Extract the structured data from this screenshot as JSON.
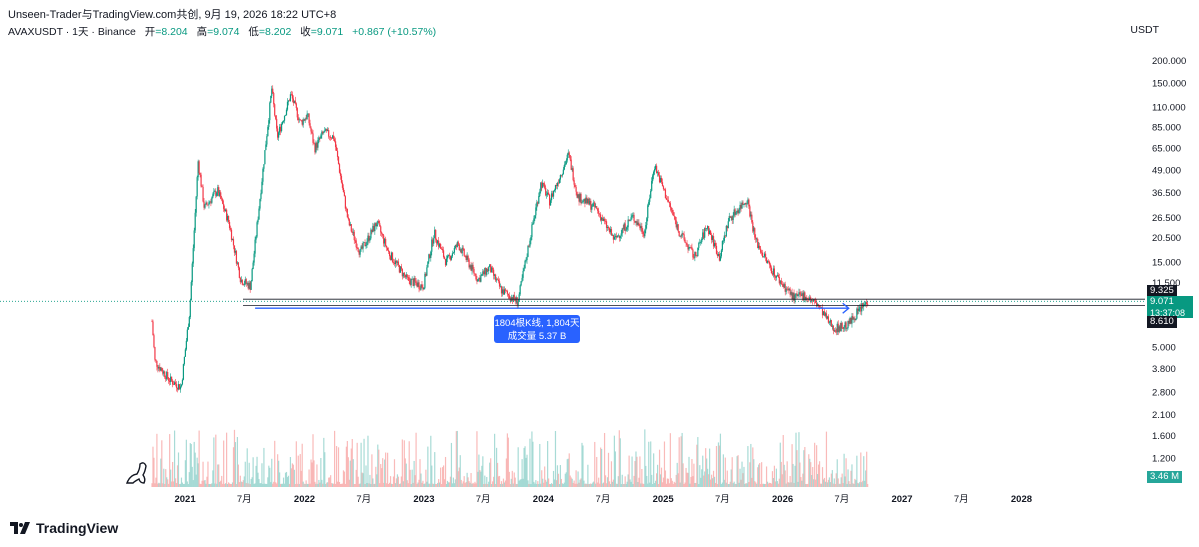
{
  "header": {
    "attribution": "Unseen-Trader与TradingView.com共创, 9月 19, 2026 18:22 UTC+8",
    "symbol": "AVAXUSDT · 1天 · Binance",
    "open_label": "开",
    "open": "=8.204",
    "high_label": "高",
    "high": "=9.074",
    "low_label": "低",
    "low": "=8.202",
    "close_label": "收",
    "close": "=9.071",
    "change": "+0.867 (+10.57%)",
    "currency": "USDT"
  },
  "colors": {
    "up": "#089981",
    "down": "#f23645",
    "accent": "#2962ff",
    "dark": "#131722"
  },
  "price_tags": {
    "upper": "9.325",
    "current": "9.071",
    "countdown": "13:37:08",
    "lower": "8.610",
    "volume": "3.46 M"
  },
  "measure": {
    "line1": "1804根K线, 1,804天",
    "line2": "成交量 5.37 B"
  },
  "footer": {
    "logo_text": "TradingView"
  },
  "chart_data": {
    "type": "candlestick",
    "scale": "log",
    "y_ticks": [
      "200.000",
      "150.000",
      "110.000",
      "85.000",
      "65.000",
      "49.000",
      "36.500",
      "26.500",
      "20.500",
      "15.000",
      "11.500",
      "5.000",
      "3.800",
      "2.800",
      "2.100",
      "1.600",
      "1.200"
    ],
    "x_ticks": [
      "2021",
      "7月",
      "2022",
      "7月",
      "2023",
      "7月",
      "2024",
      "7月",
      "2025",
      "7月",
      "2026",
      "7月",
      "2027",
      "7月",
      "2028"
    ],
    "price_path": [
      [
        "2020-09-22",
        7.0
      ],
      [
        "2020-10-01",
        4.2
      ],
      [
        "2020-11-15",
        3.3
      ],
      [
        "2020-12-20",
        3.0
      ],
      [
        "2021-01-15",
        8.0
      ],
      [
        "2021-02-10",
        55.0
      ],
      [
        "2021-03-01",
        30.0
      ],
      [
        "2021-04-10",
        38.0
      ],
      [
        "2021-05-15",
        25.0
      ],
      [
        "2021-06-20",
        12.0
      ],
      [
        "2021-07-20",
        11.0
      ],
      [
        "2021-08-10",
        25.0
      ],
      [
        "2021-09-01",
        60.0
      ],
      [
        "2021-09-23",
        140.0
      ],
      [
        "2021-10-10",
        75.0
      ],
      [
        "2021-11-20",
        130.0
      ],
      [
        "2021-12-20",
        90.0
      ],
      [
        "2022-01-10",
        100.0
      ],
      [
        "2022-02-01",
        65.0
      ],
      [
        "2022-03-01",
        80.0
      ],
      [
        "2022-04-01",
        75.0
      ],
      [
        "2022-05-15",
        25.0
      ],
      [
        "2022-06-20",
        17.0
      ],
      [
        "2022-08-10",
        25.0
      ],
      [
        "2022-09-15",
        17.0
      ],
      [
        "2022-11-10",
        12.0
      ],
      [
        "2022-12-30",
        11.0
      ],
      [
        "2023-02-01",
        22.0
      ],
      [
        "2023-03-10",
        15.0
      ],
      [
        "2023-04-15",
        19.0
      ],
      [
        "2023-06-15",
        12.0
      ],
      [
        "2023-07-20",
        14.0
      ],
      [
        "2023-08-25",
        10.5
      ],
      [
        "2023-10-15",
        9.0
      ],
      [
        "2023-11-20",
        20.0
      ],
      [
        "2023-12-25",
        42.0
      ],
      [
        "2024-01-20",
        33.0
      ],
      [
        "2024-03-18",
        60.0
      ],
      [
        "2024-04-15",
        35.0
      ],
      [
        "2024-06-10",
        30.0
      ],
      [
        "2024-08-05",
        20.0
      ],
      [
        "2024-09-30",
        27.0
      ],
      [
        "2024-11-05",
        22.0
      ],
      [
        "2024-12-05",
        53.0
      ],
      [
        "2025-01-10",
        35.0
      ],
      [
        "2025-02-20",
        22.0
      ],
      [
        "2025-04-07",
        16.0
      ],
      [
        "2025-05-15",
        24.0
      ],
      [
        "2025-06-22",
        16.0
      ],
      [
        "2025-07-20",
        26.0
      ],
      [
        "2025-09-15",
        34.0
      ],
      [
        "2025-10-10",
        20.0
      ],
      [
        "2025-11-15",
        15.0
      ],
      [
        "2025-12-20",
        12.0
      ],
      [
        "2026-02-05",
        9.5
      ],
      [
        "2026-03-10",
        9.8
      ],
      [
        "2026-04-20",
        8.6
      ],
      [
        "2026-05-20",
        7.0
      ],
      [
        "2026-06-10",
        6.4
      ],
      [
        "2026-07-20",
        6.7
      ],
      [
        "2026-08-20",
        8.0
      ],
      [
        "2026-09-19",
        9.071
      ]
    ],
    "horizontal_levels": [
      9.325,
      8.61
    ],
    "measure_range": {
      "from": "2021-08-03",
      "to": "2026-07-22",
      "bars": 1804,
      "days": 1804,
      "volume": "5.37 B"
    }
  }
}
